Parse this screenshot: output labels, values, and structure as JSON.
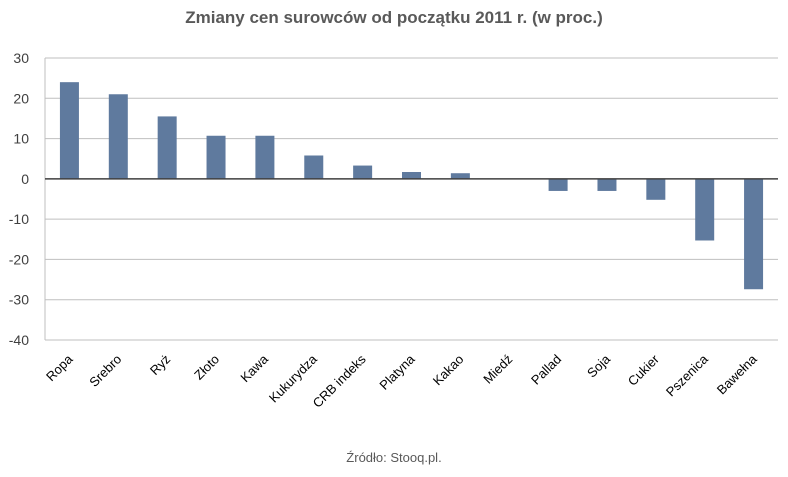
{
  "chart_data": {
    "type": "bar",
    "title": "Zmiany cen surowców od początku 2011 r. (w proc.)",
    "categories": [
      "Ropa",
      "Srebro",
      "Ryż",
      "Złoto",
      "Kawa",
      "Kukurydza",
      "CRB indeks",
      "Platyna",
      "Kakao",
      "Miedź",
      "Pallad",
      "Soja",
      "Cukier",
      "Pszenica",
      "Bawełna"
    ],
    "values": [
      24,
      21,
      15.5,
      10.7,
      10.7,
      5.8,
      3.3,
      1.7,
      1.4,
      0,
      -3,
      -3,
      -5.2,
      -15.3,
      -27.4
    ],
    "xlabel": "",
    "ylabel": "",
    "ylim": [
      -40,
      30
    ],
    "yticks": [
      30,
      20,
      10,
      0,
      -10,
      -20,
      -30,
      -40
    ],
    "grid": true,
    "bar_color": "#5f7a9e",
    "source": "Źródło: Stooq.pl."
  }
}
